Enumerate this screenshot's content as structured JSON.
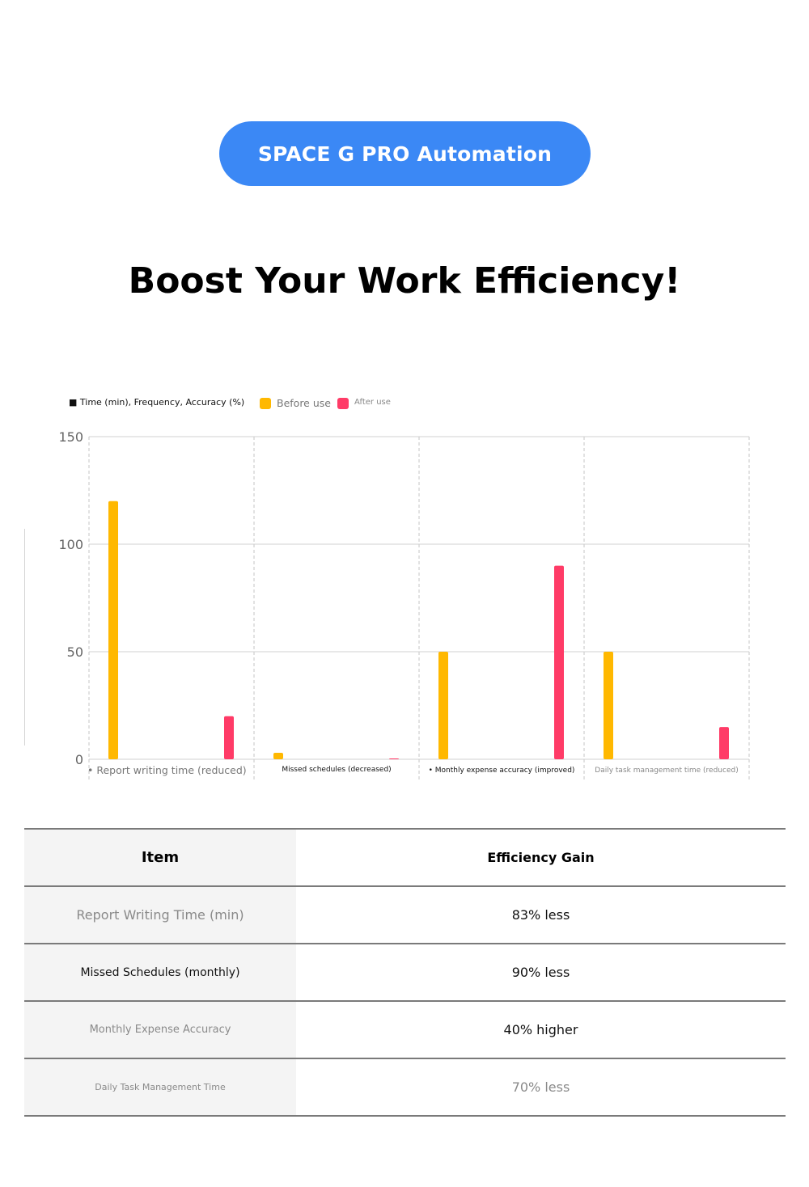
{
  "header": {
    "badge_label": "SPACE G PRO Automation",
    "headline": "Boost Your Work Efficiency!"
  },
  "colors": {
    "accent": "#3b88f5",
    "before": "#ffb800",
    "after": "#ff3b67"
  },
  "chart_data": {
    "type": "bar",
    "legend_title": "■ Time (min), Frequency, Accuracy (%)",
    "legend_placement": "top-left",
    "categories": [
      "• Report writing time (reduced)",
      "Missed schedules (decreased)",
      "• Monthly expense accuracy (improved)",
      "Daily task management time (reduced)"
    ],
    "series": [
      {
        "name": "Before use",
        "color": "#ffb800",
        "values": [
          120,
          3,
          50,
          50
        ]
      },
      {
        "name": "After use",
        "color": "#ff3b67",
        "values": [
          20,
          0.3,
          90,
          15
        ]
      }
    ],
    "ylim": [
      0,
      150
    ],
    "yticks": [
      0,
      50,
      100,
      150
    ],
    "grid": true
  },
  "table": {
    "headers": [
      "Item",
      "Efficiency Gain"
    ],
    "rows": [
      [
        "Report Writing Time (min)",
        "83% less"
      ],
      [
        "Missed Schedules (monthly)",
        "90% less"
      ],
      [
        "Monthly Expense Accuracy",
        "40% higher"
      ],
      [
        "Daily Task Management Time",
        "70% less"
      ]
    ]
  }
}
